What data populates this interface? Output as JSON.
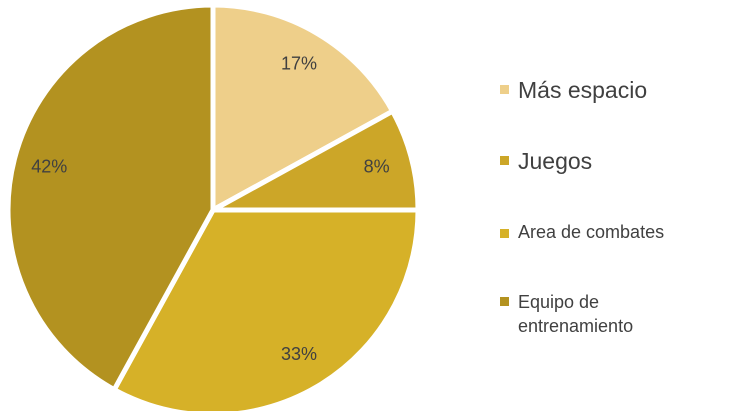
{
  "chart_data": {
    "type": "pie",
    "categories": [
      "Más espacio",
      "Juegos",
      "Area de combates",
      "Equipo de entrenamiento"
    ],
    "values": [
      17,
      8,
      33,
      42
    ],
    "value_labels": [
      "17%",
      "8%",
      "33%",
      "42%"
    ],
    "colors": [
      "#EECF8A",
      "#CCA628",
      "#D6B128",
      "#B39220"
    ],
    "legend": "right"
  }
}
